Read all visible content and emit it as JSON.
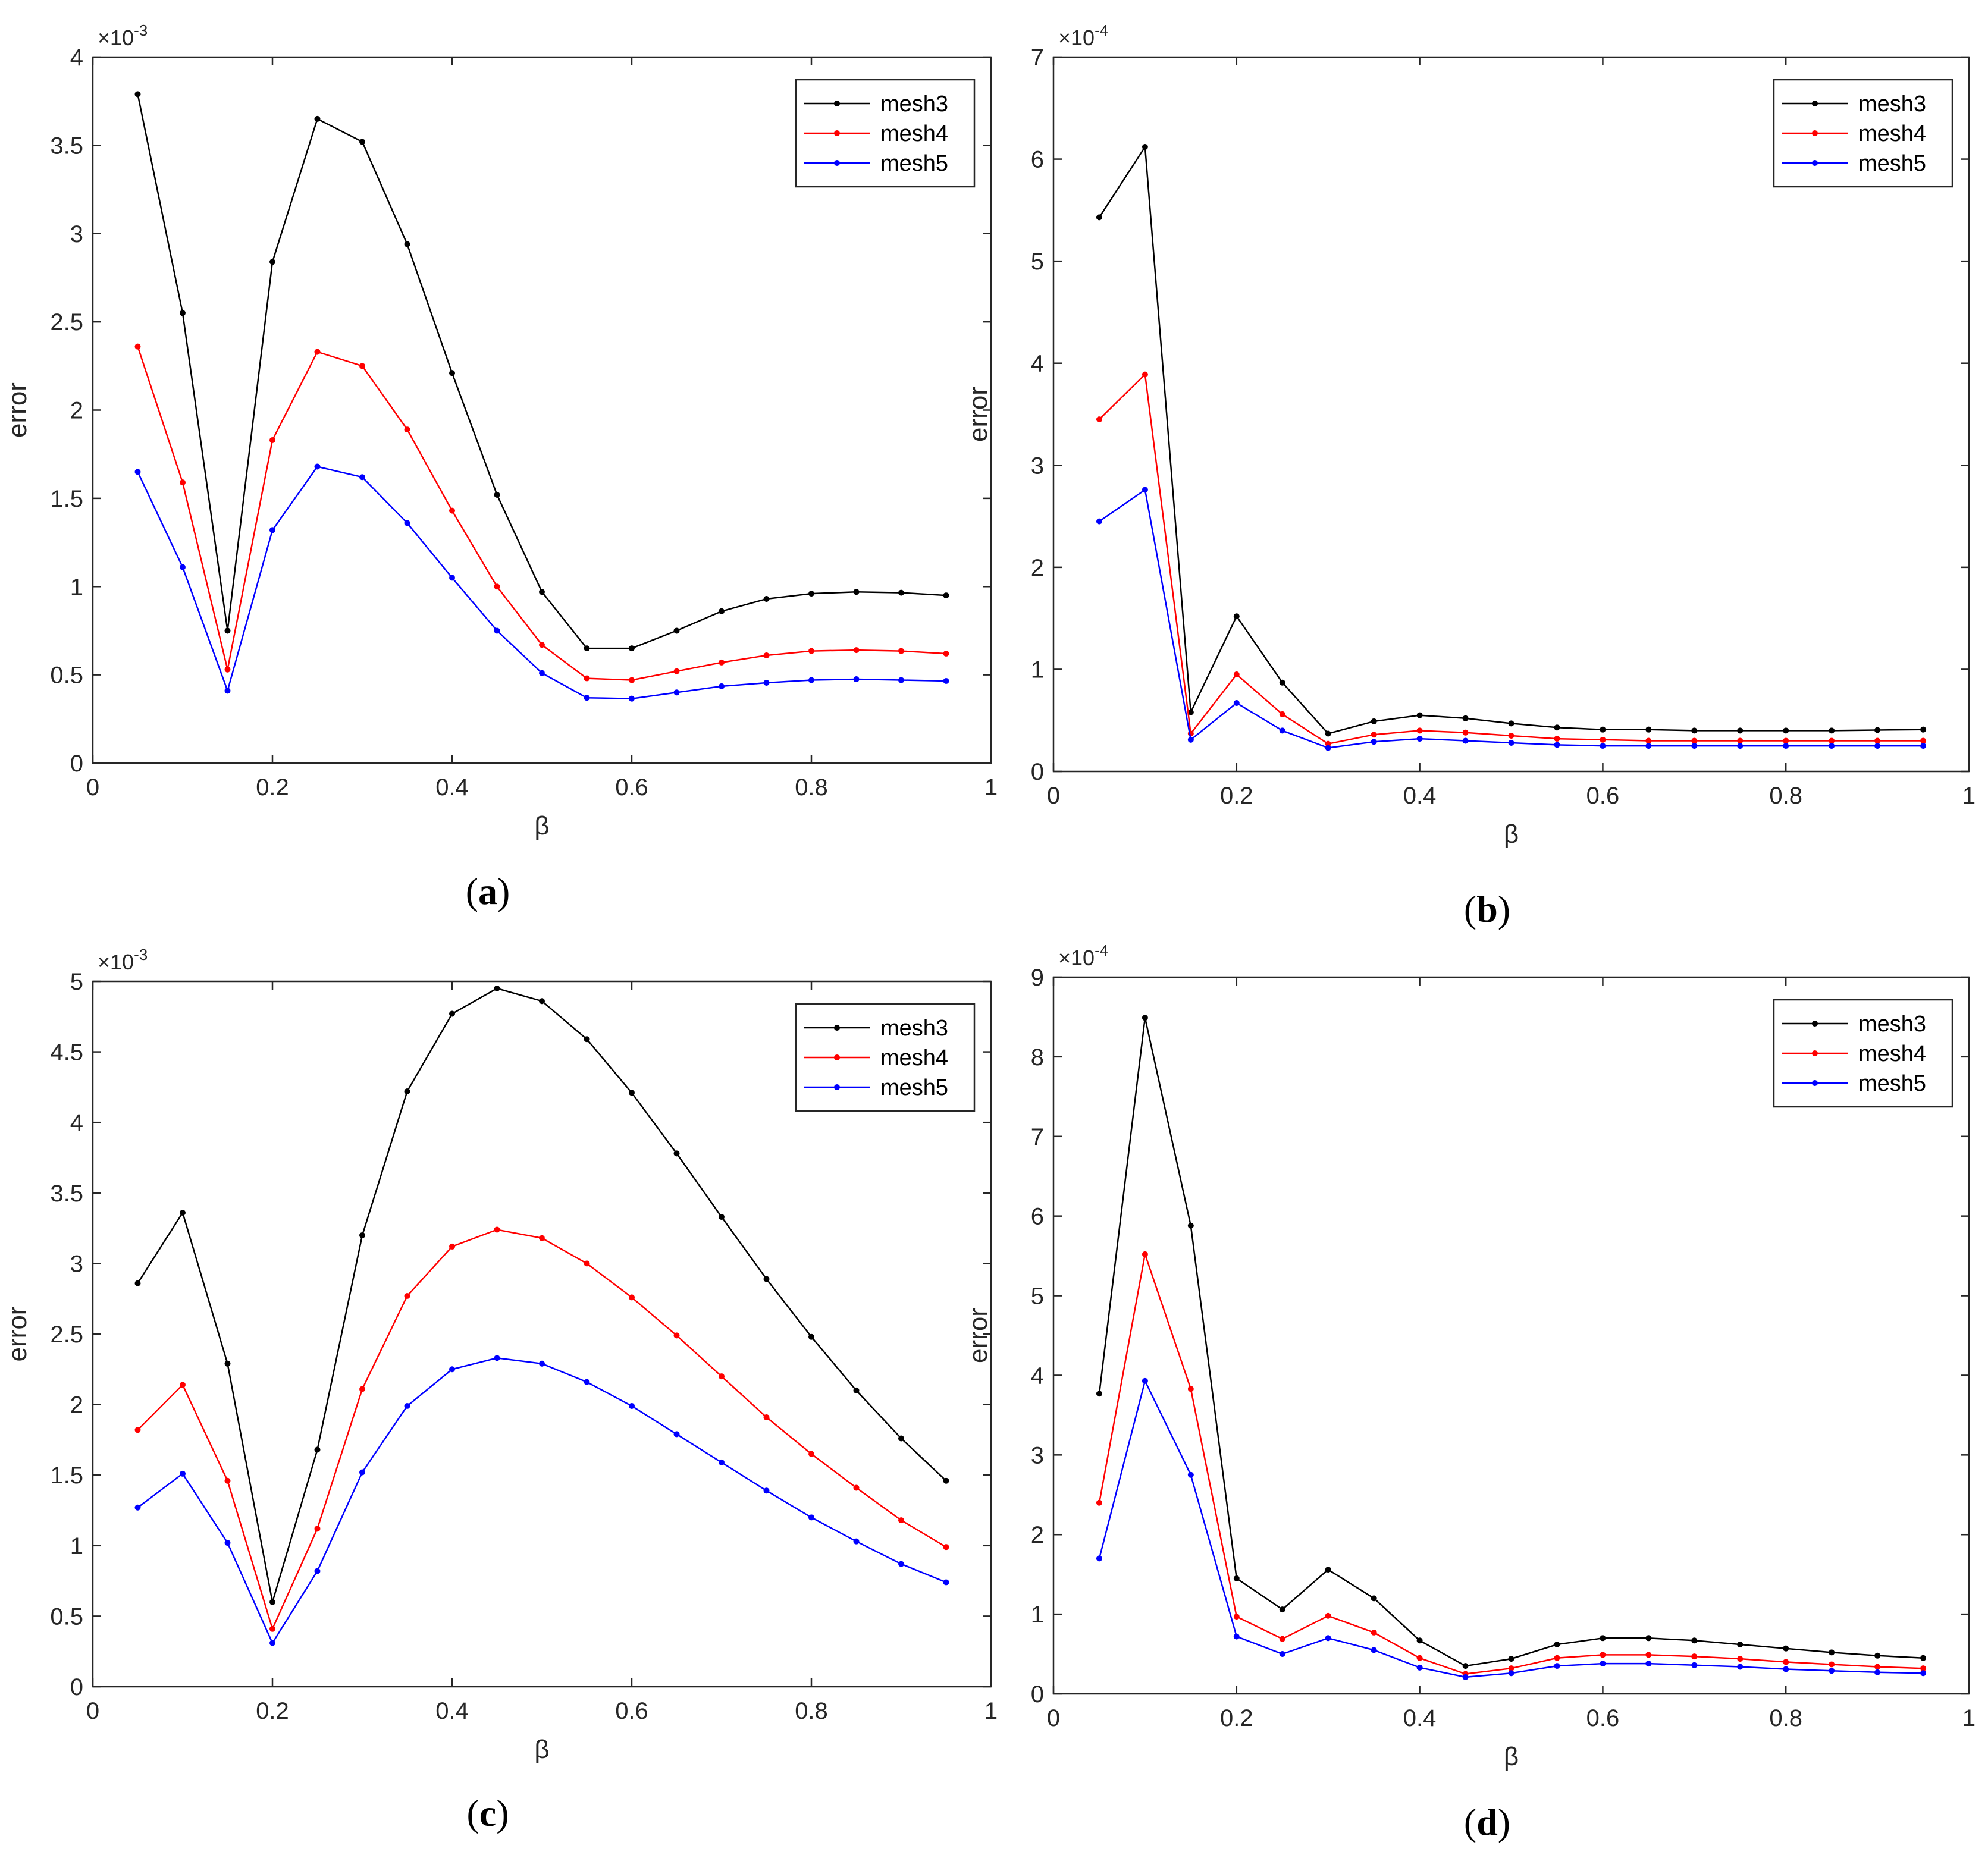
{
  "chart_data": [
    {
      "panel": "(a)",
      "panel_letter": "a",
      "type": "line",
      "xlabel": "β",
      "ylabel": "error",
      "xlim": [
        0,
        1
      ],
      "ylim": [
        0,
        4
      ],
      "xticks": [
        "0",
        "0.2",
        "0.4",
        "0.6",
        "0.8",
        "1"
      ],
      "yticks": [
        "0",
        "0.5",
        "1",
        "1.5",
        "2",
        "2.5",
        "3",
        "3.5",
        "4"
      ],
      "ytick_values": [
        0,
        0.5,
        1,
        1.5,
        2,
        2.5,
        3,
        3.5,
        4
      ],
      "xtick_values": [
        0,
        0.2,
        0.4,
        0.6,
        0.8,
        1
      ],
      "exponent": "×10",
      "exponent_power": "-3",
      "x": [
        0.05,
        0.1,
        0.15,
        0.2,
        0.25,
        0.3,
        0.35,
        0.4,
        0.45,
        0.5,
        0.55,
        0.6,
        0.65,
        0.7,
        0.75,
        0.8,
        0.85,
        0.9,
        0.95
      ],
      "series": [
        {
          "name": "mesh3",
          "color": "#000000",
          "values": [
            3.79,
            2.55,
            0.75,
            2.84,
            3.65,
            3.52,
            2.94,
            2.21,
            1.52,
            0.97,
            0.65,
            0.65,
            0.75,
            0.86,
            0.93,
            0.96,
            0.97,
            0.965,
            0.95
          ]
        },
        {
          "name": "mesh4",
          "color": "#ff0000",
          "values": [
            2.36,
            1.59,
            0.53,
            1.83,
            2.33,
            2.25,
            1.89,
            1.43,
            1.0,
            0.67,
            0.48,
            0.47,
            0.52,
            0.57,
            0.61,
            0.635,
            0.64,
            0.635,
            0.62
          ]
        },
        {
          "name": "mesh5",
          "color": "#0000ff",
          "values": [
            1.65,
            1.11,
            0.41,
            1.32,
            1.68,
            1.62,
            1.36,
            1.05,
            0.75,
            0.51,
            0.37,
            0.365,
            0.4,
            0.435,
            0.455,
            0.47,
            0.475,
            0.47,
            0.465
          ]
        }
      ],
      "legend": "top-right"
    },
    {
      "panel": "(b)",
      "panel_letter": "b",
      "type": "line",
      "xlabel": "β",
      "ylabel": "error",
      "xlim": [
        0,
        1
      ],
      "ylim": [
        0,
        7
      ],
      "xticks": [
        "0",
        "0.2",
        "0.4",
        "0.6",
        "0.8",
        "1"
      ],
      "yticks": [
        "0",
        "1",
        "2",
        "3",
        "4",
        "5",
        "6",
        "7"
      ],
      "ytick_values": [
        0,
        1,
        2,
        3,
        4,
        5,
        6,
        7
      ],
      "xtick_values": [
        0,
        0.2,
        0.4,
        0.6,
        0.8,
        1
      ],
      "exponent": "×10",
      "exponent_power": "-4",
      "x": [
        0.05,
        0.1,
        0.15,
        0.2,
        0.25,
        0.3,
        0.35,
        0.4,
        0.45,
        0.5,
        0.55,
        0.6,
        0.65,
        0.7,
        0.75,
        0.8,
        0.85,
        0.9,
        0.95
      ],
      "series": [
        {
          "name": "mesh3",
          "color": "#000000",
          "values": [
            5.43,
            6.12,
            0.58,
            1.52,
            0.87,
            0.37,
            0.49,
            0.55,
            0.52,
            0.47,
            0.43,
            0.41,
            0.41,
            0.4,
            0.4,
            0.4,
            0.4,
            0.405,
            0.41
          ]
        },
        {
          "name": "mesh4",
          "color": "#ff0000",
          "values": [
            3.45,
            3.89,
            0.37,
            0.95,
            0.56,
            0.27,
            0.36,
            0.4,
            0.38,
            0.35,
            0.32,
            0.31,
            0.3,
            0.3,
            0.3,
            0.3,
            0.3,
            0.3,
            0.3
          ]
        },
        {
          "name": "mesh5",
          "color": "#0000ff",
          "values": [
            2.45,
            2.76,
            0.31,
            0.67,
            0.4,
            0.23,
            0.29,
            0.32,
            0.3,
            0.28,
            0.26,
            0.25,
            0.25,
            0.25,
            0.25,
            0.25,
            0.25,
            0.25,
            0.25
          ]
        }
      ],
      "legend": "top-right"
    },
    {
      "panel": "(c)",
      "panel_letter": "c",
      "type": "line",
      "xlabel": "β",
      "ylabel": "error",
      "xlim": [
        0,
        1
      ],
      "ylim": [
        0,
        5
      ],
      "xticks": [
        "0",
        "0.2",
        "0.4",
        "0.6",
        "0.8",
        "1"
      ],
      "yticks": [
        "0",
        "0.5",
        "1",
        "1.5",
        "2",
        "2.5",
        "3",
        "3.5",
        "4",
        "4.5",
        "5"
      ],
      "ytick_values": [
        0,
        0.5,
        1,
        1.5,
        2,
        2.5,
        3,
        3.5,
        4,
        4.5,
        5
      ],
      "xtick_values": [
        0,
        0.2,
        0.4,
        0.6,
        0.8,
        1
      ],
      "exponent": "×10",
      "exponent_power": "-3",
      "x": [
        0.05,
        0.1,
        0.15,
        0.2,
        0.25,
        0.3,
        0.35,
        0.4,
        0.45,
        0.5,
        0.55,
        0.6,
        0.65,
        0.7,
        0.75,
        0.8,
        0.85,
        0.9,
        0.95
      ],
      "series": [
        {
          "name": "mesh3",
          "color": "#000000",
          "values": [
            2.86,
            3.36,
            2.29,
            0.6,
            1.68,
            3.2,
            4.22,
            4.77,
            4.95,
            4.86,
            4.59,
            4.21,
            3.78,
            3.33,
            2.89,
            2.48,
            2.1,
            1.76,
            1.46
          ]
        },
        {
          "name": "mesh4",
          "color": "#ff0000",
          "values": [
            1.82,
            2.14,
            1.46,
            0.41,
            1.12,
            2.11,
            2.77,
            3.12,
            3.24,
            3.18,
            3.0,
            2.76,
            2.49,
            2.2,
            1.91,
            1.65,
            1.41,
            1.18,
            0.99
          ]
        },
        {
          "name": "mesh5",
          "color": "#0000ff",
          "values": [
            1.27,
            1.51,
            1.02,
            0.31,
            0.82,
            1.52,
            1.99,
            2.25,
            2.33,
            2.29,
            2.16,
            1.99,
            1.79,
            1.59,
            1.39,
            1.2,
            1.03,
            0.87,
            0.74
          ]
        }
      ],
      "legend": "top-right"
    },
    {
      "panel": "(d)",
      "panel_letter": "d",
      "type": "line",
      "xlabel": "β",
      "ylabel": "error",
      "xlim": [
        0,
        1
      ],
      "ylim": [
        0,
        9
      ],
      "xticks": [
        "0",
        "0.2",
        "0.4",
        "0.6",
        "0.8",
        "1"
      ],
      "yticks": [
        "0",
        "1",
        "2",
        "3",
        "4",
        "5",
        "6",
        "7",
        "8",
        "9"
      ],
      "ytick_values": [
        0,
        1,
        2,
        3,
        4,
        5,
        6,
        7,
        8,
        9
      ],
      "xtick_values": [
        0,
        0.2,
        0.4,
        0.6,
        0.8,
        1
      ],
      "exponent": "×10",
      "exponent_power": "-4",
      "x": [
        0.05,
        0.1,
        0.15,
        0.2,
        0.25,
        0.3,
        0.35,
        0.4,
        0.45,
        0.5,
        0.55,
        0.6,
        0.65,
        0.7,
        0.75,
        0.8,
        0.85,
        0.9,
        0.95
      ],
      "series": [
        {
          "name": "mesh3",
          "color": "#000000",
          "values": [
            3.77,
            8.49,
            5.88,
            1.45,
            1.06,
            1.56,
            1.2,
            0.67,
            0.35,
            0.44,
            0.62,
            0.7,
            0.7,
            0.67,
            0.62,
            0.57,
            0.52,
            0.48,
            0.45
          ]
        },
        {
          "name": "mesh4",
          "color": "#ff0000",
          "values": [
            2.4,
            5.52,
            3.83,
            0.97,
            0.69,
            0.98,
            0.77,
            0.45,
            0.25,
            0.32,
            0.45,
            0.49,
            0.49,
            0.47,
            0.44,
            0.4,
            0.37,
            0.34,
            0.32
          ]
        },
        {
          "name": "mesh5",
          "color": "#0000ff",
          "values": [
            1.7,
            3.93,
            2.75,
            0.72,
            0.5,
            0.7,
            0.55,
            0.33,
            0.21,
            0.26,
            0.35,
            0.38,
            0.38,
            0.36,
            0.34,
            0.31,
            0.29,
            0.27,
            0.26
          ]
        }
      ],
      "legend": "top-right"
    }
  ]
}
